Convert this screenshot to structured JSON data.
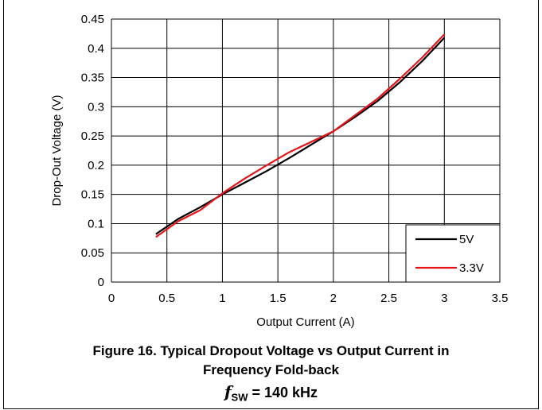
{
  "chart_data": {
    "type": "line",
    "xlabel": "Output Current (A)",
    "ylabel": "Drop-Out Voltage (V)",
    "xlim": [
      0,
      3.5
    ],
    "ylim": [
      0,
      0.45
    ],
    "xticks": [
      0,
      0.5,
      1,
      1.5,
      2,
      2.5,
      3,
      3.5
    ],
    "xtick_labels": [
      "0",
      "0.5",
      "1",
      "1.5",
      "2",
      "2.5",
      "3",
      "3.5"
    ],
    "yticks": [
      0,
      0.05,
      0.1,
      0.15,
      0.2,
      0.25,
      0.3,
      0.35,
      0.4,
      0.45
    ],
    "ytick_labels": [
      "0",
      "0.05",
      "0.1",
      "0.15",
      "0.2",
      "0.25",
      "0.3",
      "0.35",
      "0.4",
      "0.45"
    ],
    "grid": true,
    "legend_position": "bottom-right",
    "series": [
      {
        "name": "5V",
        "color": "#000000",
        "x": [
          0.4,
          0.6,
          0.8,
          1.0,
          1.2,
          1.4,
          1.6,
          1.8,
          2.0,
          2.2,
          2.4,
          2.6,
          2.8,
          3.0
        ],
        "y": [
          0.082,
          0.108,
          0.128,
          0.15,
          0.17,
          0.19,
          0.212,
          0.235,
          0.258,
          0.283,
          0.31,
          0.342,
          0.378,
          0.418
        ]
      },
      {
        "name": "3.3V",
        "color": "#e8141b",
        "x": [
          0.4,
          0.6,
          0.8,
          1.0,
          1.2,
          1.4,
          1.6,
          1.8,
          2.0,
          2.2,
          2.4,
          2.6,
          2.8,
          3.0
        ],
        "y": [
          0.077,
          0.104,
          0.123,
          0.152,
          0.177,
          0.2,
          0.222,
          0.24,
          0.258,
          0.286,
          0.314,
          0.348,
          0.384,
          0.424
        ]
      }
    ]
  },
  "caption": {
    "line1": "Figure 16. Typical Dropout Voltage vs Output Current in",
    "line2": "Frequency Fold-back",
    "line3_symbol": "f",
    "line3_subscript": "SW",
    "line3_rest": " = 140 kHz"
  }
}
